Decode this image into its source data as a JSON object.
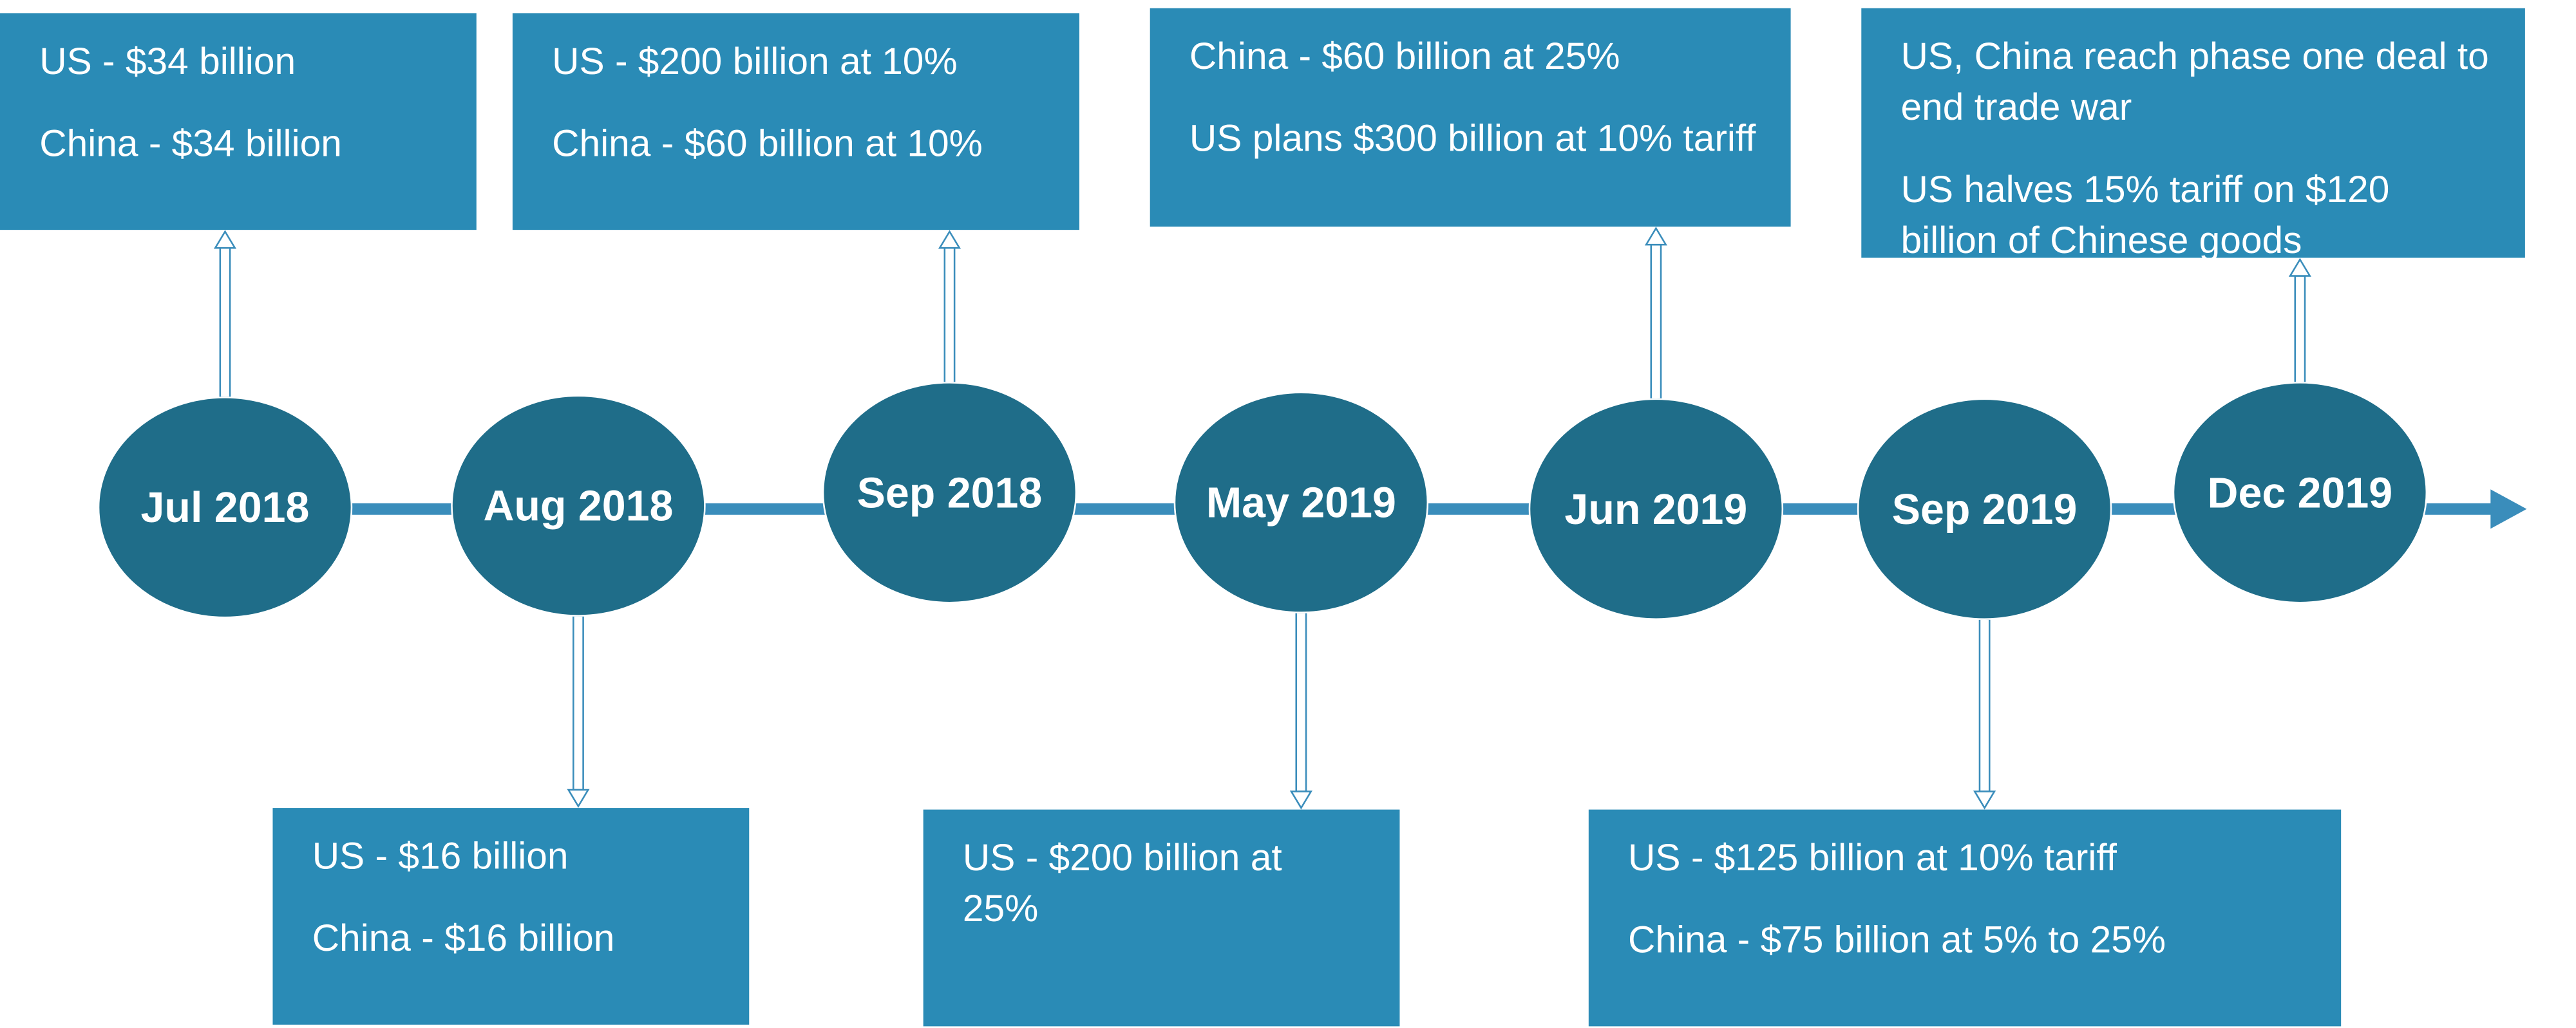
{
  "events": [
    {
      "date": "Jul 2018",
      "notes": [
        "US - $34 billion",
        "China - $34 billion"
      ]
    },
    {
      "date": "Aug 2018",
      "notes": [
        "US - $16 billion",
        "China - $16 billion"
      ]
    },
    {
      "date": "Sep 2018",
      "notes": [
        "US - $200 billion at 10%",
        "China - $60 billion at 10%"
      ]
    },
    {
      "date": "May 2019",
      "notes": [
        "US - $200 billion at 25%"
      ]
    },
    {
      "date": "Jun 2019",
      "notes": [
        "China - $60 billion at 25%",
        "US plans $300 billion at 10% tariff"
      ]
    },
    {
      "date": "Sep 2019",
      "notes": [
        "US - $125 billion at 10% tariff",
        "China - $75 billion at 5% to 25%"
      ]
    },
    {
      "date": "Dec 2019",
      "notes": [
        "US, China reach phase one deal to end trade war",
        "US halves 15% tariff on $120 billion of Chinese goods"
      ]
    }
  ]
}
